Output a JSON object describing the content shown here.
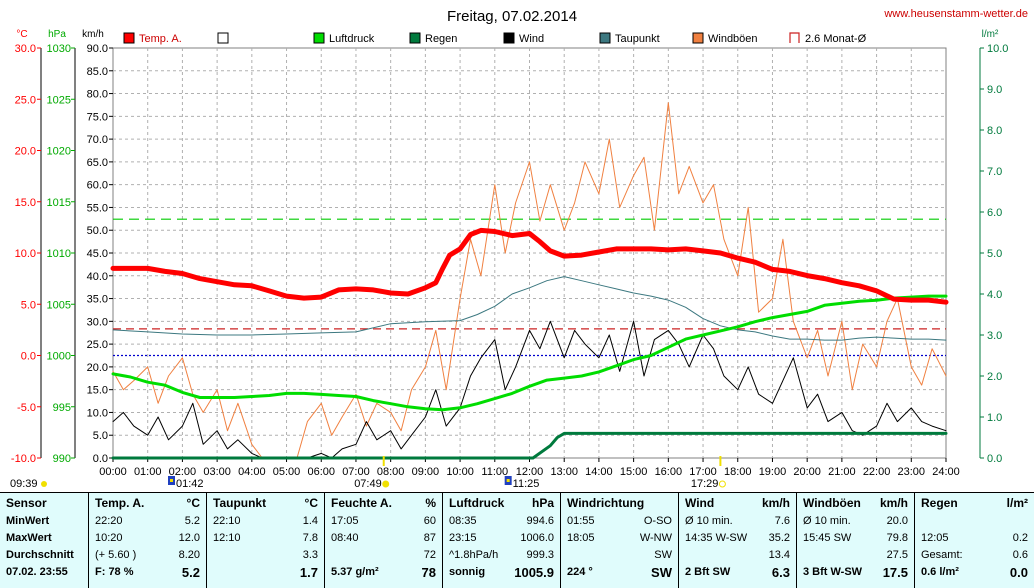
{
  "chart_data": {
    "type": "line",
    "title": "Freitag, 07.02.2014",
    "website": "www.heusenstamm-wetter.de",
    "axis_units": {
      "temp": "°C",
      "pressure": "hPa",
      "wind": "km/h",
      "rain": "l/m²"
    },
    "axes": {
      "temp": {
        "min": -10,
        "max": 30,
        "ticks": [
          "30.0",
          "25.0",
          "20.0",
          "15.0",
          "10.0",
          "5.0",
          "0.0",
          "-5.0",
          "-10.0"
        ]
      },
      "pressure": {
        "min": 990,
        "max": 1030,
        "ticks": [
          "1030",
          "1025",
          "1020",
          "1015",
          "1010",
          "1005",
          "1000",
          "995",
          "990"
        ]
      },
      "wind": {
        "min": 0,
        "max": 90,
        "ticks": [
          "90.0",
          "85.0",
          "80.0",
          "75.0",
          "70.0",
          "65.0",
          "60.0",
          "55.0",
          "50.0",
          "45.0",
          "40.0",
          "35.0",
          "30.0",
          "25.0",
          "20.0",
          "15.0",
          "10.0",
          "5.0",
          "0.0"
        ]
      },
      "rain": {
        "min": 0,
        "max": 10,
        "ticks": [
          "10.0",
          "9.0",
          "8.0",
          "7.0",
          "6.0",
          "5.0",
          "4.0",
          "3.0",
          "2.0",
          "1.0",
          "0.0"
        ]
      }
    },
    "x_ticks": [
      "00:00",
      "01:00",
      "02:00",
      "03:00",
      "04:00",
      "05:00",
      "06:00",
      "07:00",
      "08:00",
      "09:00",
      "10:00",
      "11:00",
      "12:00",
      "13:00",
      "14:00",
      "15:00",
      "16:00",
      "17:00",
      "18:00",
      "19:00",
      "20:00",
      "21:00",
      "22:00",
      "23:00",
      "24:00"
    ],
    "grid": true,
    "legend": [
      {
        "label": "Temp. A.",
        "color": "#ff0000",
        "style": "box"
      },
      {
        "label": "",
        "color": "#ffffff",
        "style": "box"
      },
      {
        "label": "Luftdruck",
        "color": "#00dd00",
        "style": "box"
      },
      {
        "label": "Regen",
        "color": "#007a3d",
        "style": "box"
      },
      {
        "label": "Wind",
        "color": "#000000",
        "style": "box"
      },
      {
        "label": "Taupunkt",
        "color": "#3c7880",
        "style": "box"
      },
      {
        "label": "Windböen",
        "color": "#f08040",
        "style": "box"
      },
      {
        "label": "2.6 Monat-Ø",
        "color": "#cc2222",
        "style": "outline"
      }
    ],
    "reference_lines": [
      {
        "name": "Monat-Ø",
        "axis": "temp",
        "value": 2.6,
        "color": "#cc2222"
      },
      {
        "axis": "temp",
        "value": 0.0,
        "color": "#0000cc"
      },
      {
        "axis": "pressure",
        "value": 1013.3,
        "color": "#00cc00"
      }
    ],
    "series": [
      {
        "name": "Temp. A.",
        "axis": "temp",
        "color": "#ff0000",
        "width": 5,
        "x": [
          0,
          1,
          1.5,
          2,
          2.5,
          3,
          3.5,
          4,
          4.5,
          5,
          5.5,
          6,
          6.5,
          7,
          7.5,
          8,
          8.5,
          9,
          9.3,
          9.5,
          9.7,
          10,
          10.3,
          10.6,
          11,
          11.5,
          12,
          12.3,
          12.6,
          13,
          13.5,
          14,
          14.5,
          15,
          15.5,
          16,
          16.5,
          17,
          17.5,
          18,
          18.5,
          19,
          19.5,
          20,
          20.5,
          21,
          21.5,
          22,
          22.5,
          23,
          23.5,
          24
        ],
        "y": [
          8.5,
          8.5,
          8.2,
          8.0,
          7.5,
          7.2,
          6.9,
          6.8,
          6.3,
          5.8,
          5.6,
          5.7,
          6.4,
          6.5,
          6.4,
          6.1,
          6.0,
          6.6,
          7.1,
          8.5,
          9.8,
          10.4,
          11.8,
          12.2,
          12.1,
          11.7,
          11.9,
          11.1,
          10.2,
          9.7,
          9.8,
          10.1,
          10.4,
          10.4,
          10.4,
          10.3,
          10.4,
          10.2,
          10.0,
          9.5,
          9.1,
          8.4,
          8.2,
          7.8,
          7.5,
          7.1,
          6.8,
          6.3,
          5.5,
          5.4,
          5.4,
          5.2
        ]
      },
      {
        "name": "Luftdruck",
        "axis": "pressure",
        "color": "#00dd00",
        "width": 3,
        "x": [
          0,
          0.5,
          1,
          1.5,
          2,
          2.5,
          3,
          3.5,
          4,
          4.5,
          5,
          5.5,
          6,
          6.5,
          7,
          7.5,
          8,
          8.5,
          9,
          9.5,
          10,
          10.5,
          11,
          11.5,
          12,
          12.5,
          13,
          13.5,
          14,
          14.5,
          15,
          15.5,
          16,
          16.5,
          17,
          17.5,
          18,
          18.5,
          19,
          19.5,
          20,
          20.5,
          21,
          21.5,
          22,
          22.5,
          23,
          23.5,
          24
        ],
        "y": [
          998.2,
          997.9,
          997.4,
          997.1,
          996.4,
          995.9,
          995.9,
          995.9,
          996.0,
          996.1,
          996.3,
          996.3,
          996.2,
          996.1,
          996.0,
          995.6,
          995.3,
          995.0,
          994.8,
          994.7,
          994.9,
          995.3,
          995.8,
          996.3,
          997.0,
          997.6,
          997.8,
          998.0,
          998.4,
          999.0,
          999.6,
          1000.0,
          1000.8,
          1001.6,
          1002.0,
          1002.4,
          1002.8,
          1003.3,
          1003.7,
          1004.0,
          1004.3,
          1004.9,
          1005.1,
          1005.3,
          1005.4,
          1005.6,
          1005.7,
          1005.8,
          1005.8
        ]
      },
      {
        "name": "Taupunkt",
        "axis": "temp",
        "color": "#3c7880",
        "width": 1,
        "x": [
          0,
          1,
          2,
          3,
          4,
          5,
          6,
          7,
          8,
          9,
          10,
          10.5,
          11,
          11.5,
          12,
          12.5,
          13,
          13.5,
          14,
          14.5,
          15,
          15.5,
          16,
          16.5,
          17,
          17.5,
          18,
          18.5,
          19,
          19.5,
          20,
          20.5,
          21,
          21.5,
          22,
          22.5,
          23,
          23.5,
          24
        ],
        "y": [
          2.5,
          2.3,
          2.1,
          2.0,
          2.0,
          2.1,
          2.2,
          2.3,
          3.1,
          3.3,
          3.4,
          4.0,
          4.8,
          6.0,
          6.6,
          7.3,
          7.7,
          7.3,
          6.9,
          6.5,
          6.1,
          5.8,
          5.4,
          4.7,
          3.6,
          2.9,
          2.5,
          2.3,
          1.9,
          1.6,
          1.6,
          1.5,
          1.5,
          1.7,
          1.8,
          1.7,
          1.6,
          1.6,
          1.5
        ]
      },
      {
        "name": "Regen",
        "axis": "rain",
        "color": "#007a3d",
        "width": 3,
        "x": [
          0,
          12.1,
          12.6,
          12.8,
          13.0,
          24
        ],
        "y": [
          0,
          0,
          0.3,
          0.5,
          0.6,
          0.6
        ]
      },
      {
        "name": "Wind",
        "axis": "wind",
        "color": "#000000",
        "width": 1,
        "x": [
          0,
          0.3,
          0.6,
          1,
          1.3,
          1.6,
          2,
          2.3,
          2.6,
          3,
          3.3,
          3.6,
          4,
          4.3,
          4.6,
          5,
          5.3,
          5.6,
          6,
          6.3,
          6.6,
          7,
          7.3,
          7.6,
          8,
          8.3,
          8.6,
          9,
          9.3,
          9.6,
          10,
          10.3,
          10.6,
          11,
          11.3,
          11.6,
          12,
          12.3,
          12.6,
          13,
          13.3,
          13.6,
          14,
          14.3,
          14.6,
          15,
          15.3,
          15.6,
          16,
          16.3,
          16.6,
          17,
          17.3,
          17.6,
          18,
          18.3,
          18.6,
          19,
          19.3,
          19.6,
          20,
          20.3,
          20.6,
          21,
          21.3,
          21.6,
          22,
          22.3,
          22.6,
          23,
          23.3,
          23.6,
          24
        ],
        "y": [
          8,
          10,
          7,
          5,
          9,
          4,
          7,
          12,
          3,
          6,
          2,
          4,
          1,
          0,
          0,
          0,
          0,
          0,
          1,
          0,
          2,
          3,
          8,
          4,
          6,
          2,
          5,
          9,
          15,
          7,
          11,
          18,
          22,
          26,
          15,
          20,
          28,
          24,
          30,
          22,
          28,
          25,
          22,
          27,
          19,
          30,
          18,
          26,
          28,
          25,
          20,
          27,
          24,
          18,
          15,
          20,
          14,
          12,
          17,
          22,
          11,
          14,
          8,
          10,
          6,
          5,
          7,
          12,
          8,
          11,
          8,
          7,
          6
        ]
      },
      {
        "name": "Windböen",
        "axis": "wind",
        "color": "#f08040",
        "width": 1,
        "x": [
          0,
          0.3,
          0.6,
          1,
          1.3,
          1.6,
          2,
          2.3,
          2.6,
          3,
          3.3,
          3.6,
          4,
          4.3,
          4.6,
          5,
          5.3,
          5.6,
          6,
          6.3,
          6.6,
          7,
          7.3,
          7.6,
          8,
          8.3,
          8.6,
          9,
          9.3,
          9.6,
          10,
          10.3,
          10.6,
          11,
          11.3,
          11.6,
          12,
          12.3,
          12.6,
          13,
          13.3,
          13.6,
          14,
          14.3,
          14.6,
          15,
          15.3,
          15.6,
          16,
          16.3,
          16.6,
          17,
          17.3,
          17.6,
          18,
          18.3,
          18.6,
          19,
          19.3,
          19.6,
          20,
          20.3,
          20.6,
          21,
          21.3,
          21.6,
          22,
          22.3,
          22.6,
          23,
          23.3,
          23.6,
          24
        ],
        "y": [
          19,
          15,
          17,
          20,
          12,
          18,
          22,
          14,
          10,
          15,
          6,
          12,
          3,
          0,
          0,
          0,
          0,
          8,
          12,
          5,
          9,
          14,
          7,
          12,
          10,
          6,
          15,
          20,
          28,
          15,
          35,
          48,
          40,
          60,
          45,
          56,
          65,
          52,
          60,
          50,
          56,
          65,
          58,
          70,
          55,
          62,
          66,
          50,
          78,
          58,
          64,
          56,
          60,
          48,
          40,
          55,
          32,
          35,
          48,
          30,
          22,
          28,
          18,
          30,
          15,
          25,
          20,
          30,
          35,
          20,
          16,
          24,
          18
        ]
      }
    ],
    "annotations": [
      {
        "text": "09:39",
        "x": -0.3,
        "kind": "moon"
      },
      {
        "text": "01:42",
        "x": 1.7,
        "kind": "marker"
      },
      {
        "text": "07:49",
        "x": 7.8,
        "kind": "sunrise"
      },
      {
        "text": "11:25",
        "x": 11.4,
        "kind": "marker"
      },
      {
        "text": "17:29",
        "x": 17.5,
        "kind": "sunset"
      }
    ]
  },
  "table": {
    "cols": [
      {
        "h1": "Sensor",
        "h2": "",
        "rows": [
          [
            "MinWert",
            ""
          ],
          [
            "MaxWert",
            ""
          ],
          [
            "Durchschnitt",
            ""
          ],
          [
            "07.02. 23:55",
            ""
          ]
        ]
      },
      {
        "h1": "Temp. A.",
        "h2": "°C",
        "rows": [
          [
            "22:20",
            "5.2"
          ],
          [
            "10:20",
            "12.0"
          ],
          [
            "(+ 5.60 )",
            "8.20"
          ],
          [
            "F: 78 %",
            "5.2"
          ]
        ]
      },
      {
        "h1": "Taupunkt",
        "h2": "°C",
        "rows": [
          [
            "22:10",
            "1.4"
          ],
          [
            "12:10",
            "7.8"
          ],
          [
            "",
            "3.3"
          ],
          [
            "",
            "1.7"
          ]
        ]
      },
      {
        "h1": "Feuchte A.",
        "h2": "%",
        "rows": [
          [
            "17:05",
            "60"
          ],
          [
            "08:40",
            "87"
          ],
          [
            "",
            "72"
          ],
          [
            "5.37 g/m²",
            "78"
          ]
        ]
      },
      {
        "h1": "Luftdruck",
        "h2": "hPa",
        "rows": [
          [
            "08:35",
            "994.6"
          ],
          [
            "23:15",
            "1006.0"
          ],
          [
            "^1.8hPa/h",
            "999.3"
          ],
          [
            "sonnig",
            "1005.9"
          ]
        ]
      },
      {
        "h1": "Windrichtung",
        "h2": "",
        "rows": [
          [
            "01:55",
            "O-SO"
          ],
          [
            "18:05",
            "W-NW"
          ],
          [
            "",
            "SW"
          ],
          [
            "224 °",
            "SW"
          ]
        ]
      },
      {
        "h1": "Wind",
        "h2": "km/h",
        "rows": [
          [
            "Ø 10 min.",
            "7.6"
          ],
          [
            "14:35   W-SW",
            "35.2"
          ],
          [
            "",
            "13.4"
          ],
          [
            "2 Bft SW",
            "6.3"
          ]
        ]
      },
      {
        "h1": "Windböen",
        "h2": "km/h",
        "rows": [
          [
            "Ø 10 min.",
            "20.0"
          ],
          [
            "15:45     SW",
            "79.8"
          ],
          [
            "",
            "27.5"
          ],
          [
            "3 Bft W-SW",
            "17.5"
          ]
        ]
      },
      {
        "h1": "Regen",
        "h2": "l/m²",
        "rows": [
          [
            "",
            ""
          ],
          [
            "12:05",
            "0.2"
          ],
          [
            "Gesamt:",
            "0.6"
          ],
          [
            "0.6 l/m²",
            "0.0"
          ]
        ]
      }
    ]
  }
}
